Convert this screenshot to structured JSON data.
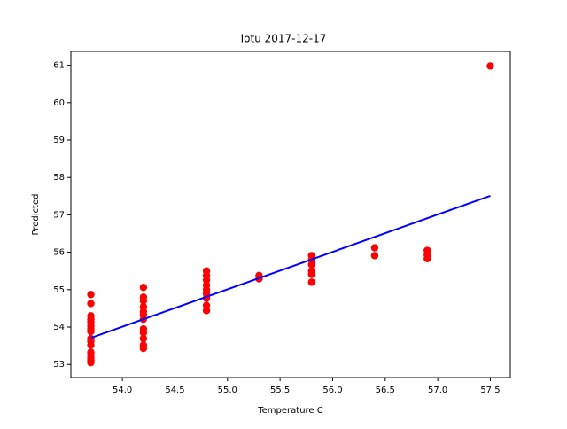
{
  "chart_data": {
    "type": "scatter",
    "title": "Iotu 2017-12-17",
    "x_label": "Temperature C",
    "y_label": "Predicted",
    "xlim": [
      53.51,
      57.69
    ],
    "ylim": [
      52.65,
      61.37
    ],
    "xticks": [
      {
        "value": 54,
        "label": "54.0"
      },
      54.5,
      {
        "value": 55,
        "label": "55.0"
      },
      55.5,
      {
        "value": 56,
        "label": "56.0"
      },
      56.5,
      {
        "value": 57,
        "label": "57.0"
      },
      57.5
    ],
    "yticks": [
      53,
      54,
      55,
      56,
      57,
      58,
      59,
      60,
      61
    ],
    "series": [
      {
        "kind": "points",
        "color": "#ff0000",
        "x": [
          53.7,
          53.7,
          53.7,
          53.7,
          53.7,
          53.7,
          53.7,
          53.7,
          53.7,
          53.7,
          53.7,
          53.7,
          53.7,
          53.7,
          53.7,
          53.7,
          54.2,
          54.2,
          54.2,
          54.2,
          54.2,
          54.2,
          54.2,
          54.2,
          54.2,
          54.2,
          54.2,
          54.2,
          54.8,
          54.8,
          54.8,
          54.8,
          54.8,
          54.8,
          54.8,
          54.8,
          54.8,
          55.3,
          55.3,
          55.8,
          55.8,
          55.8,
          55.8,
          55.8,
          55.8,
          56.4,
          56.4,
          56.9,
          56.9,
          56.9,
          57.5
        ],
        "values": [
          54.87,
          54.63,
          54.3,
          54.21,
          54.14,
          54.04,
          53.95,
          53.88,
          53.69,
          53.62,
          53.52,
          53.33,
          53.26,
          53.17,
          53.1,
          53.05,
          55.06,
          54.8,
          54.7,
          54.54,
          54.42,
          54.33,
          54.21,
          53.95,
          53.85,
          53.69,
          53.52,
          53.43,
          55.5,
          55.38,
          55.26,
          55.12,
          55.0,
          54.89,
          54.77,
          54.58,
          54.44,
          55.38,
          55.29,
          55.91,
          55.79,
          55.67,
          55.5,
          55.41,
          55.2,
          56.12,
          55.91,
          56.05,
          55.93,
          55.83,
          60.98
        ]
      },
      {
        "kind": "line",
        "color": "#0000ff",
        "x": [
          53.7,
          57.5
        ],
        "values": [
          53.71,
          57.51
        ]
      }
    ]
  }
}
